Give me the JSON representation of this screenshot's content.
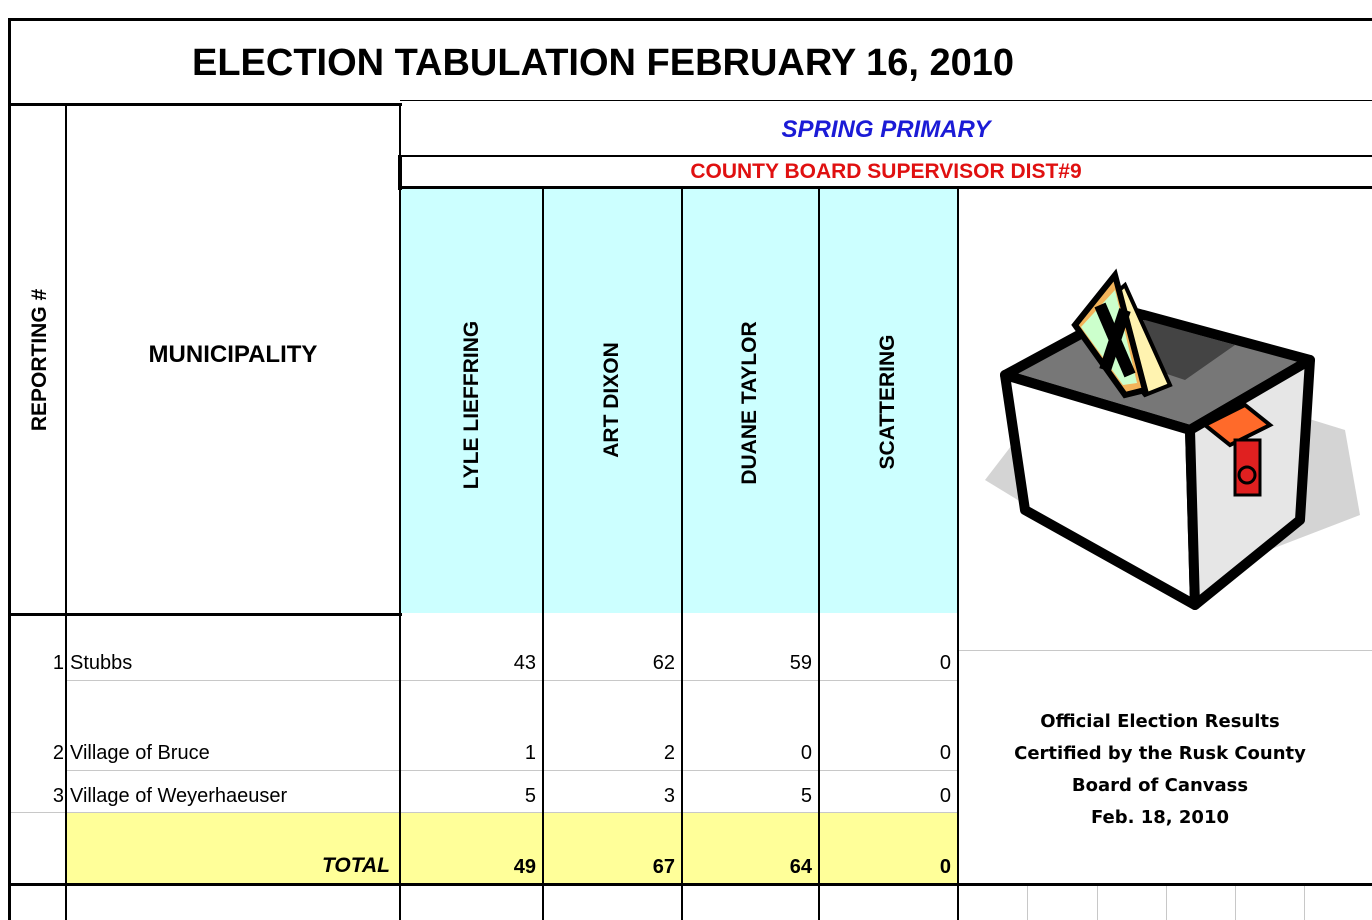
{
  "title": "ELECTION TABULATION FEBRUARY 16, 2010",
  "election": "SPRING PRIMARY",
  "race": "COUNTY BOARD SUPERVISOR DIST#9",
  "headers": {
    "reporting": "REPORTING #",
    "municipality": "MUNICIPALITY",
    "candidates": [
      "LYLE LIEFFRING",
      "ART DIXON",
      "DUANE TAYLOR",
      "SCATTERING"
    ]
  },
  "rows": [
    {
      "number": 1,
      "municipality": "Stubbs",
      "votes": [
        43,
        62,
        59,
        0
      ]
    },
    {
      "number": 2,
      "municipality": "Village of Bruce",
      "votes": [
        1,
        2,
        0,
        0
      ]
    },
    {
      "number": 3,
      "municipality": "Village of Weyerhaeuser",
      "votes": [
        5,
        3,
        5,
        0
      ]
    }
  ],
  "total": {
    "label": "TOTAL",
    "votes": [
      49,
      67,
      64,
      0
    ]
  },
  "certification": [
    "Official Election Results",
    "Certified by the Rusk County",
    "Board of Canvass",
    "Feb. 18, 2010"
  ]
}
